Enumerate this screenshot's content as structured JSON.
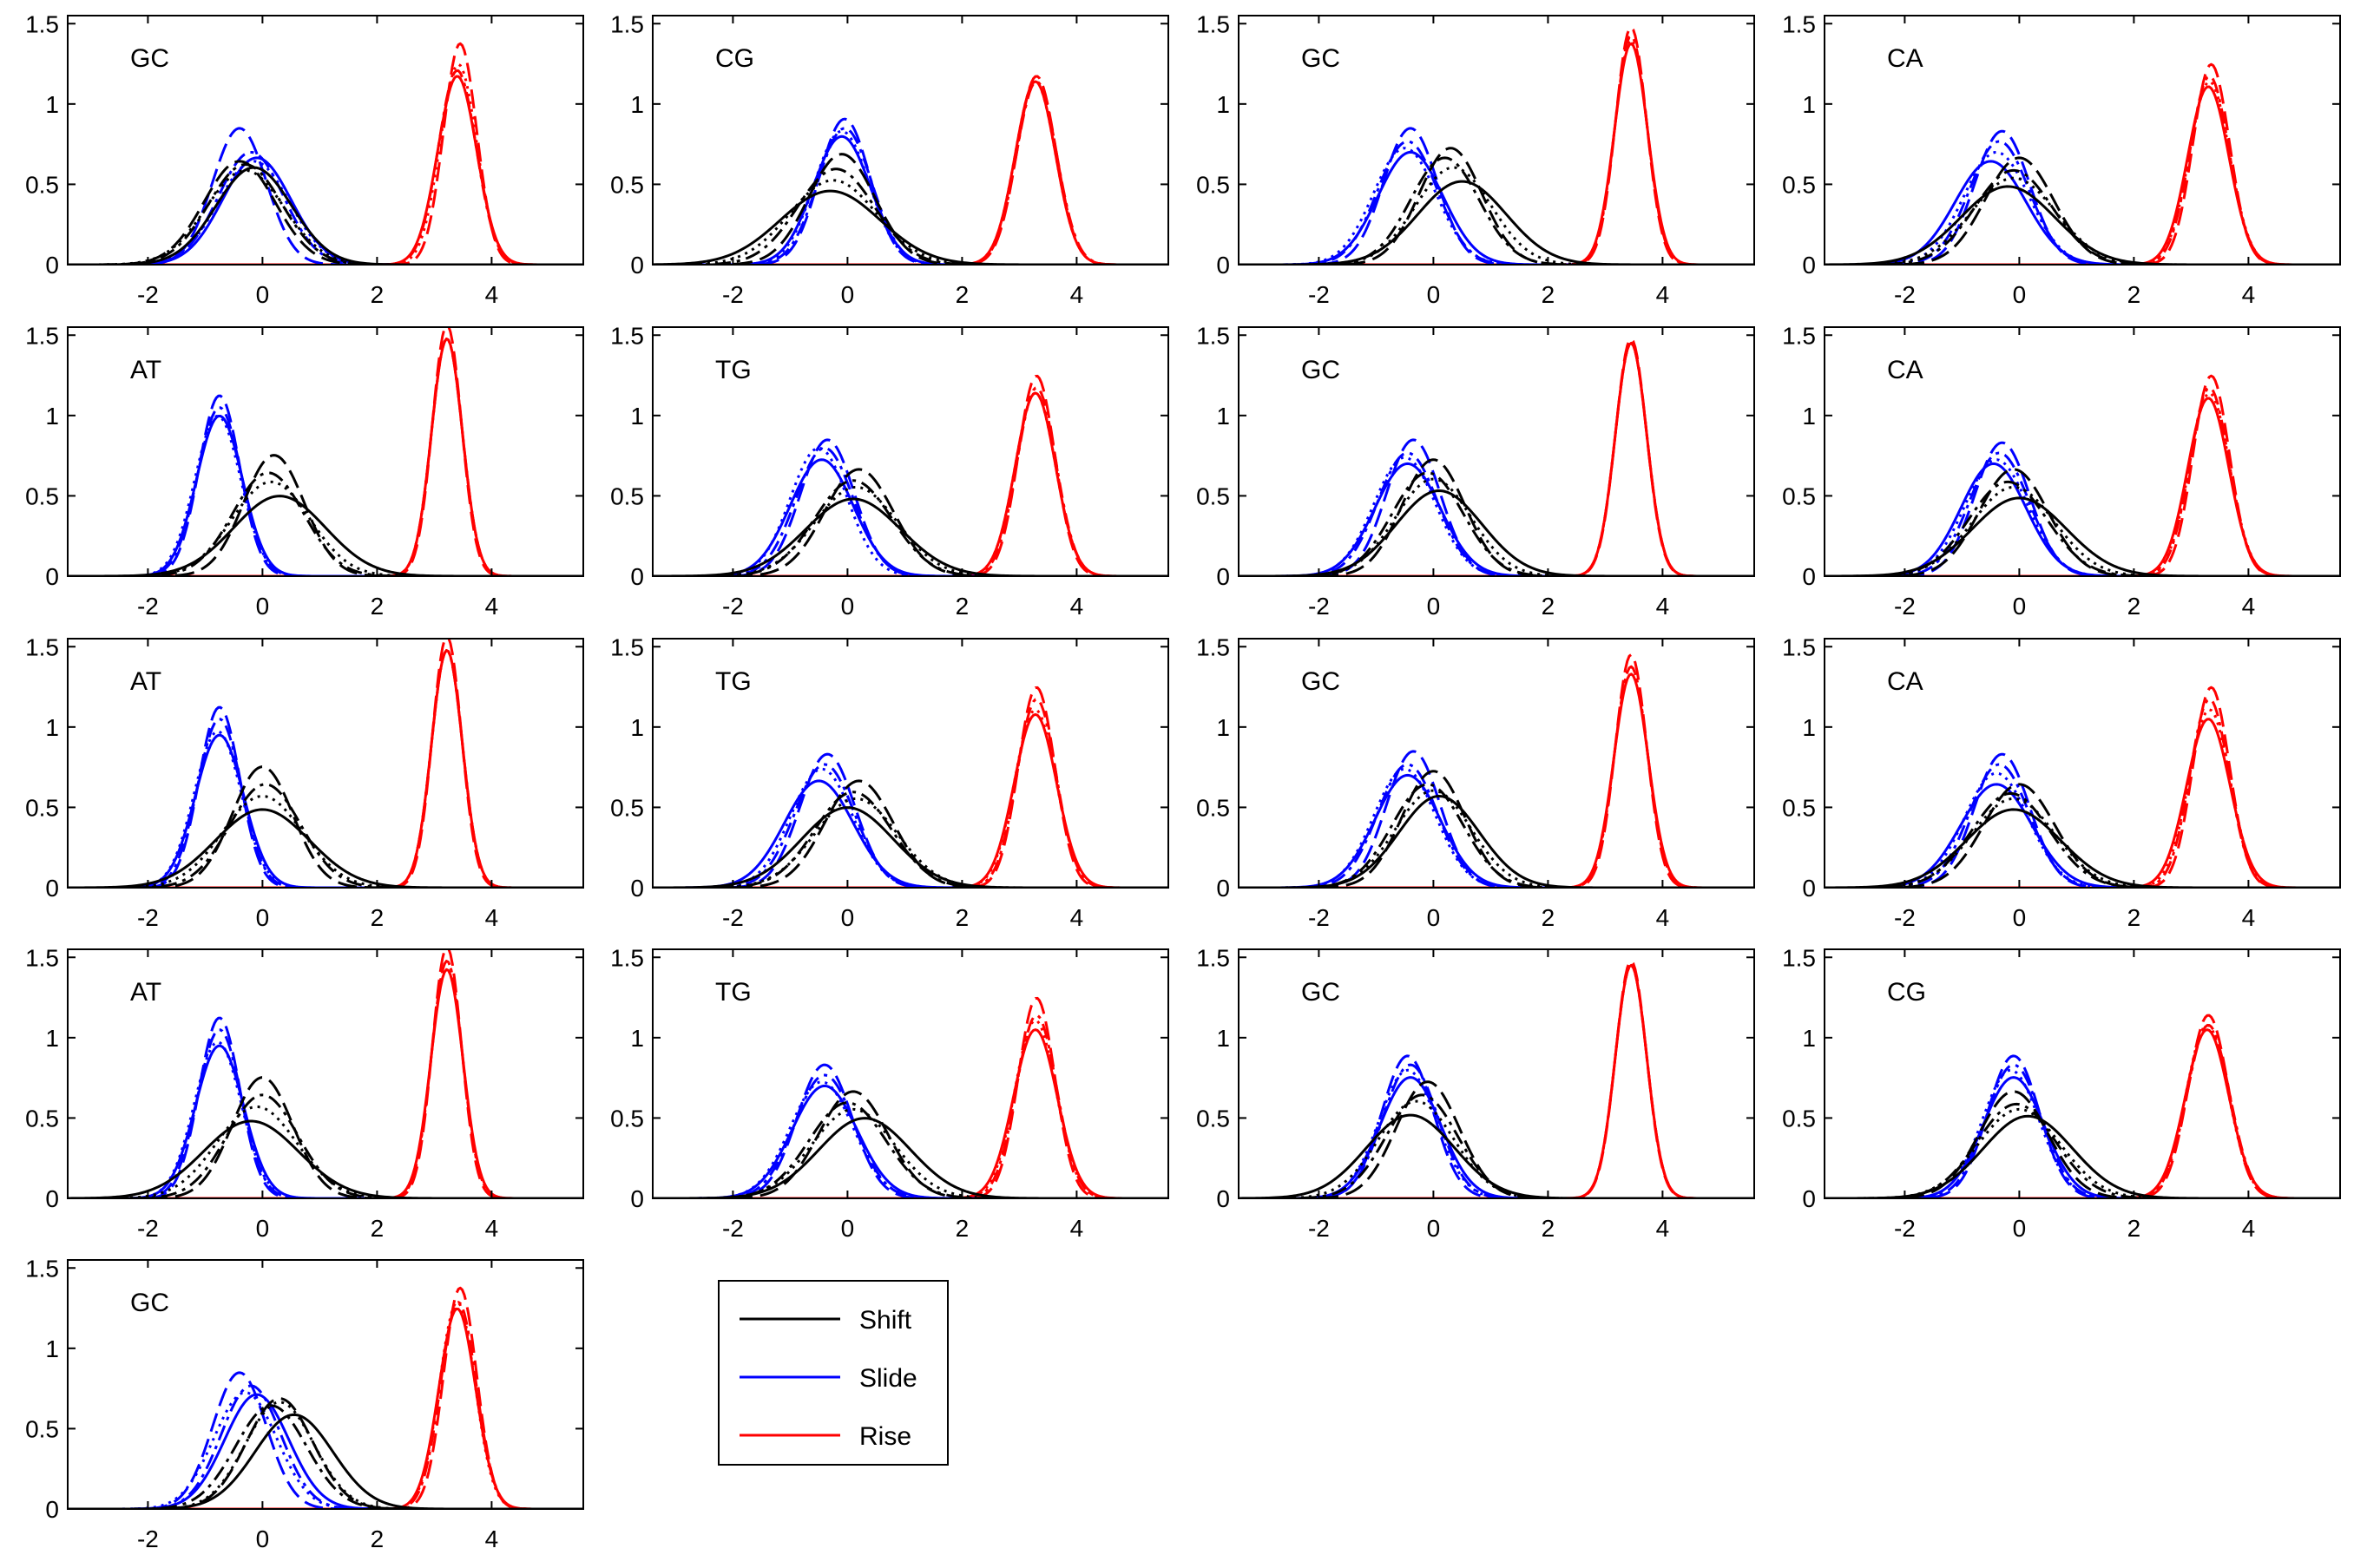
{
  "chart_data": {
    "type": "line",
    "layout": "small multiples, 4 columns x 5 rows",
    "xlim": [
      -3.4,
      5.6
    ],
    "ylim": [
      0,
      1.55
    ],
    "xticks": [
      -2,
      0,
      2,
      4
    ],
    "yticks": [
      0,
      0.5,
      1,
      1.5
    ],
    "xtick_labels": [
      "-2",
      "0",
      "2",
      "4"
    ],
    "ytick_labels": [
      "0",
      "0.5",
      "1",
      "1.5"
    ],
    "grid": false,
    "legend": {
      "placement": "bottom, second column",
      "entries": [
        {
          "label": "Shift",
          "color": "#000000"
        },
        {
          "label": "Slide",
          "color": "#0000ff"
        },
        {
          "label": "Rise",
          "color": "#ff0000"
        }
      ]
    },
    "line_styles": [
      "solid",
      "dashed",
      "dash-dot",
      "dotted"
    ],
    "note": "Each curve is a Gaussian density given as [mean, standard deviation]; four variants per parameter drawn with the four line styles.",
    "panels": [
      {
        "label": "GC",
        "shift": [
          [
            -0.15,
            0.66
          ],
          [
            -0.4,
            0.62
          ],
          [
            -0.3,
            0.64
          ],
          [
            -0.3,
            0.68
          ]
        ],
        "slide": [
          [
            -0.1,
            0.6
          ],
          [
            -0.4,
            0.47
          ],
          [
            -0.2,
            0.57
          ],
          [
            -0.15,
            0.62
          ]
        ],
        "rise": [
          [
            3.4,
            0.34
          ],
          [
            3.45,
            0.29
          ],
          [
            3.4,
            0.33
          ],
          [
            3.42,
            0.32
          ]
        ]
      },
      {
        "label": "CG",
        "shift": [
          [
            -0.3,
            0.87
          ],
          [
            -0.1,
            0.58
          ],
          [
            -0.2,
            0.67
          ],
          [
            -0.25,
            0.76
          ]
        ],
        "slide": [
          [
            -0.1,
            0.5
          ],
          [
            -0.05,
            0.44
          ],
          [
            -0.05,
            0.47
          ],
          [
            -0.1,
            0.48
          ]
        ],
        "rise": [
          [
            3.28,
            0.35
          ],
          [
            3.3,
            0.34
          ],
          [
            3.3,
            0.35
          ],
          [
            3.28,
            0.35
          ]
        ]
      },
      {
        "label": "GC",
        "shift": [
          [
            0.5,
            0.77
          ],
          [
            0.3,
            0.55
          ],
          [
            0.2,
            0.6
          ],
          [
            0.35,
            0.66
          ]
        ],
        "slide": [
          [
            -0.4,
            0.57
          ],
          [
            -0.4,
            0.47
          ],
          [
            -0.45,
            0.52
          ],
          [
            -0.5,
            0.55
          ]
        ],
        "rise": [
          [
            3.45,
            0.29
          ],
          [
            3.45,
            0.27
          ],
          [
            3.45,
            0.28
          ],
          [
            3.45,
            0.285
          ]
        ]
      },
      {
        "label": "CA",
        "shift": [
          [
            -0.2,
            0.82
          ],
          [
            0.0,
            0.6
          ],
          [
            -0.1,
            0.68
          ],
          [
            -0.1,
            0.74
          ]
        ],
        "slide": [
          [
            -0.5,
            0.62
          ],
          [
            -0.3,
            0.48
          ],
          [
            -0.35,
            0.52
          ],
          [
            -0.4,
            0.57
          ]
        ],
        "rise": [
          [
            3.3,
            0.36
          ],
          [
            3.35,
            0.32
          ],
          [
            3.32,
            0.34
          ],
          [
            3.32,
            0.35
          ]
        ]
      },
      {
        "label": "AT",
        "shift": [
          [
            0.3,
            0.8
          ],
          [
            0.2,
            0.53
          ],
          [
            0.1,
            0.62
          ],
          [
            0.15,
            0.68
          ]
        ],
        "slide": [
          [
            -0.75,
            0.4
          ],
          [
            -0.75,
            0.355
          ],
          [
            -0.75,
            0.38
          ],
          [
            -0.78,
            0.4
          ]
        ],
        "rise": [
          [
            3.22,
            0.27
          ],
          [
            3.22,
            0.255
          ],
          [
            3.22,
            0.27
          ],
          [
            3.22,
            0.27
          ]
        ]
      },
      {
        "label": "TG",
        "shift": [
          [
            0.1,
            0.83
          ],
          [
            0.2,
            0.6
          ],
          [
            0.1,
            0.67
          ],
          [
            0.15,
            0.72
          ]
        ],
        "slide": [
          [
            -0.45,
            0.55
          ],
          [
            -0.35,
            0.47
          ],
          [
            -0.4,
            0.5
          ],
          [
            -0.5,
            0.5
          ]
        ],
        "rise": [
          [
            3.28,
            0.35
          ],
          [
            3.3,
            0.32
          ],
          [
            3.3,
            0.34
          ],
          [
            3.28,
            0.35
          ]
        ]
      },
      {
        "label": "GC",
        "shift": [
          [
            0.1,
            0.75
          ],
          [
            0.0,
            0.55
          ],
          [
            -0.1,
            0.62
          ],
          [
            0.0,
            0.66
          ]
        ],
        "slide": [
          [
            -0.45,
            0.57
          ],
          [
            -0.35,
            0.47
          ],
          [
            -0.45,
            0.52
          ],
          [
            -0.5,
            0.54
          ]
        ],
        "rise": [
          [
            3.45,
            0.275
          ],
          [
            3.45,
            0.27
          ],
          [
            3.45,
            0.275
          ],
          [
            3.45,
            0.275
          ]
        ]
      },
      {
        "label": "CA",
        "shift": [
          [
            0.0,
            0.82
          ],
          [
            -0.1,
            0.6
          ],
          [
            -0.2,
            0.68
          ],
          [
            -0.1,
            0.72
          ]
        ],
        "slide": [
          [
            -0.45,
            0.57
          ],
          [
            -0.3,
            0.48
          ],
          [
            -0.35,
            0.52
          ],
          [
            -0.4,
            0.55
          ]
        ],
        "rise": [
          [
            3.3,
            0.36
          ],
          [
            3.35,
            0.32
          ],
          [
            3.32,
            0.34
          ],
          [
            3.32,
            0.35
          ]
        ]
      },
      {
        "label": "AT",
        "shift": [
          [
            0.0,
            0.82
          ],
          [
            0.0,
            0.53
          ],
          [
            0.05,
            0.62
          ],
          [
            0.0,
            0.7
          ]
        ],
        "slide": [
          [
            -0.75,
            0.42
          ],
          [
            -0.75,
            0.355
          ],
          [
            -0.75,
            0.38
          ],
          [
            -0.78,
            0.41
          ]
        ],
        "rise": [
          [
            3.22,
            0.27
          ],
          [
            3.22,
            0.255
          ],
          [
            3.22,
            0.27
          ],
          [
            3.22,
            0.27
          ]
        ]
      },
      {
        "label": "TG",
        "shift": [
          [
            0.0,
            0.8
          ],
          [
            0.2,
            0.6
          ],
          [
            0.1,
            0.67
          ],
          [
            0.15,
            0.72
          ]
        ],
        "slide": [
          [
            -0.5,
            0.6
          ],
          [
            -0.35,
            0.48
          ],
          [
            -0.4,
            0.52
          ],
          [
            -0.45,
            0.54
          ]
        ],
        "rise": [
          [
            3.28,
            0.37
          ],
          [
            3.3,
            0.32
          ],
          [
            3.3,
            0.34
          ],
          [
            3.28,
            0.36
          ]
        ]
      },
      {
        "label": "GC",
        "shift": [
          [
            0.1,
            0.7
          ],
          [
            0.0,
            0.55
          ],
          [
            -0.1,
            0.62
          ],
          [
            0.0,
            0.66
          ]
        ],
        "slide": [
          [
            -0.45,
            0.57
          ],
          [
            -0.35,
            0.47
          ],
          [
            -0.45,
            0.52
          ],
          [
            -0.5,
            0.54
          ]
        ],
        "rise": [
          [
            3.45,
            0.3
          ],
          [
            3.45,
            0.275
          ],
          [
            3.45,
            0.29
          ],
          [
            3.45,
            0.29
          ]
        ]
      },
      {
        "label": "CA",
        "shift": [
          [
            -0.1,
            0.82
          ],
          [
            0.0,
            0.62
          ],
          [
            -0.15,
            0.68
          ],
          [
            -0.1,
            0.72
          ]
        ],
        "slide": [
          [
            -0.4,
            0.62
          ],
          [
            -0.3,
            0.48
          ],
          [
            -0.35,
            0.52
          ],
          [
            -0.4,
            0.56
          ]
        ],
        "rise": [
          [
            3.3,
            0.38
          ],
          [
            3.35,
            0.32
          ],
          [
            3.32,
            0.34
          ],
          [
            3.32,
            0.36
          ]
        ]
      },
      {
        "label": "AT",
        "shift": [
          [
            -0.2,
            0.83
          ],
          [
            0.0,
            0.53
          ],
          [
            0.0,
            0.62
          ],
          [
            -0.1,
            0.7
          ]
        ],
        "slide": [
          [
            -0.75,
            0.42
          ],
          [
            -0.75,
            0.355
          ],
          [
            -0.75,
            0.38
          ],
          [
            -0.78,
            0.41
          ]
        ],
        "rise": [
          [
            3.22,
            0.28
          ],
          [
            3.22,
            0.255
          ],
          [
            3.22,
            0.27
          ],
          [
            3.22,
            0.27
          ]
        ]
      },
      {
        "label": "TG",
        "shift": [
          [
            0.3,
            0.8
          ],
          [
            0.1,
            0.6
          ],
          [
            0.0,
            0.67
          ],
          [
            0.1,
            0.72
          ]
        ],
        "slide": [
          [
            -0.4,
            0.57
          ],
          [
            -0.4,
            0.48
          ],
          [
            -0.4,
            0.52
          ],
          [
            -0.45,
            0.55
          ]
        ],
        "rise": [
          [
            3.28,
            0.38
          ],
          [
            3.3,
            0.32
          ],
          [
            3.3,
            0.35
          ],
          [
            3.28,
            0.36
          ]
        ]
      },
      {
        "label": "GC",
        "shift": [
          [
            -0.4,
            0.77
          ],
          [
            -0.1,
            0.55
          ],
          [
            -0.2,
            0.62
          ],
          [
            -0.3,
            0.66
          ]
        ],
        "slide": [
          [
            -0.4,
            0.53
          ],
          [
            -0.45,
            0.45
          ],
          [
            -0.4,
            0.48
          ],
          [
            -0.45,
            0.5
          ]
        ],
        "rise": [
          [
            3.45,
            0.275
          ],
          [
            3.45,
            0.27
          ],
          [
            3.45,
            0.275
          ],
          [
            3.45,
            0.275
          ]
        ]
      },
      {
        "label": "CG",
        "shift": [
          [
            0.15,
            0.78
          ],
          [
            -0.1,
            0.6
          ],
          [
            -0.05,
            0.68
          ],
          [
            0.0,
            0.72
          ]
        ],
        "slide": [
          [
            -0.1,
            0.53
          ],
          [
            -0.1,
            0.45
          ],
          [
            -0.1,
            0.48
          ],
          [
            -0.15,
            0.5
          ]
        ],
        "rise": [
          [
            3.28,
            0.38
          ],
          [
            3.3,
            0.35
          ],
          [
            3.3,
            0.37
          ],
          [
            3.28,
            0.37
          ]
        ]
      },
      {
        "label": "GC",
        "shift": [
          [
            0.55,
            0.68
          ],
          [
            0.3,
            0.58
          ],
          [
            0.15,
            0.62
          ],
          [
            0.3,
            0.6
          ]
        ],
        "slide": [
          [
            -0.1,
            0.56
          ],
          [
            -0.4,
            0.47
          ],
          [
            -0.2,
            0.52
          ],
          [
            -0.3,
            0.55
          ]
        ],
        "rise": [
          [
            3.4,
            0.32
          ],
          [
            3.45,
            0.29
          ],
          [
            3.42,
            0.31
          ],
          [
            3.4,
            0.31
          ]
        ]
      }
    ]
  }
}
